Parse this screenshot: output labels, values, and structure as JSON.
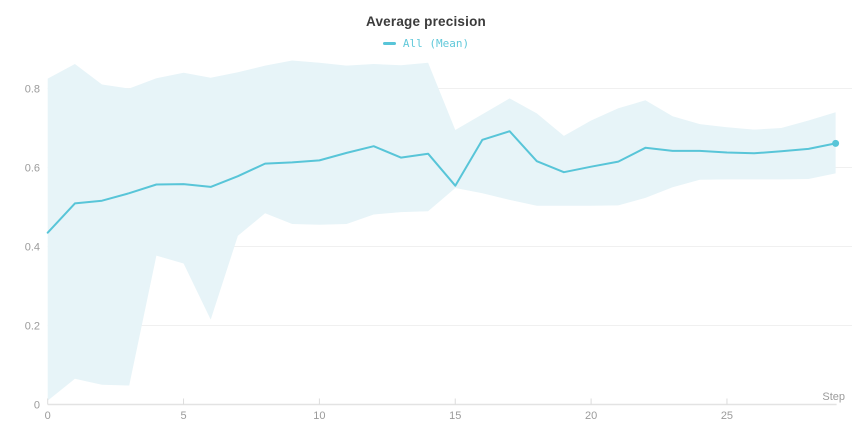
{
  "chart_data": {
    "type": "line",
    "title": "Average precision",
    "legend": {
      "position": "top",
      "label": "All (Mean)"
    },
    "xlabel": "Step",
    "ylabel": "",
    "grid": "horizontal",
    "xlim": [
      0,
      29.6
    ],
    "ylim": [
      0,
      0.88
    ],
    "xticks": [
      0,
      5,
      10,
      15,
      20,
      25
    ],
    "yticks": [
      0,
      0.2,
      0.4,
      0.6,
      0.8
    ],
    "ytick_labels": [
      "0",
      "0.2",
      "0.4",
      "0.6",
      "0.8"
    ],
    "x": [
      0,
      1,
      2,
      3,
      4,
      5,
      6,
      7,
      8,
      9,
      10,
      11,
      12,
      13,
      14,
      15,
      16,
      17,
      18,
      19,
      20,
      21,
      22,
      23,
      24,
      25,
      26,
      27,
      28,
      29
    ],
    "series": [
      {
        "name": "All (Mean)",
        "values": [
          0.435,
          0.509,
          0.516,
          0.535,
          0.557,
          0.558,
          0.551,
          0.578,
          0.61,
          0.613,
          0.618,
          0.637,
          0.654,
          0.625,
          0.635,
          0.554,
          0.67,
          0.692,
          0.616,
          0.588,
          0.602,
          0.615,
          0.65,
          0.642,
          0.642,
          0.638,
          0.636,
          0.641,
          0.647,
          0.661
        ],
        "band_upper": [
          0.825,
          0.862,
          0.81,
          0.8,
          0.826,
          0.84,
          0.827,
          0.841,
          0.858,
          0.871,
          0.865,
          0.858,
          0.862,
          0.859,
          0.865,
          0.695,
          0.735,
          0.775,
          0.737,
          0.68,
          0.719,
          0.75,
          0.77,
          0.73,
          0.71,
          0.702,
          0.696,
          0.7,
          0.719,
          0.74
        ],
        "band_lower": [
          0.01,
          0.065,
          0.05,
          0.048,
          0.377,
          0.357,
          0.215,
          0.427,
          0.484,
          0.457,
          0.455,
          0.457,
          0.481,
          0.487,
          0.489,
          0.548,
          0.535,
          0.518,
          0.503,
          0.503,
          0.503,
          0.504,
          0.523,
          0.55,
          0.569,
          0.57,
          0.57,
          0.57,
          0.571,
          0.585
        ],
        "end_marker": true
      }
    ],
    "colors": {
      "line": "#58c5d8",
      "band": "#e7f4f8",
      "legend_text": "#62c9da",
      "title_text": "#3b3b3b",
      "tick_text": "#9b9b9b",
      "gridline": "#f0f0f0",
      "axis_line": "#e3e3e3",
      "tick_mark": "#dcdcdc",
      "background": "#ffffff"
    }
  }
}
